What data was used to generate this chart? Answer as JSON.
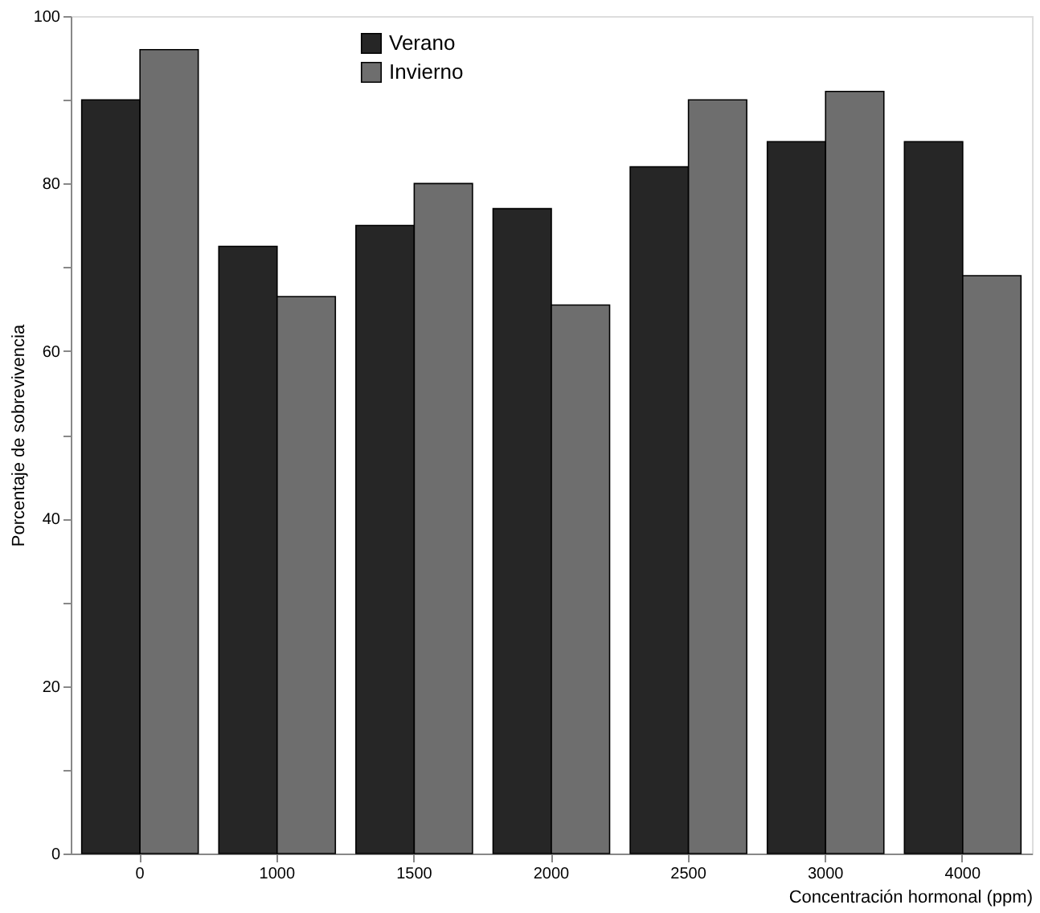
{
  "chart_data": {
    "type": "bar",
    "xlabel": "Concentración hormonal (ppm)",
    "ylabel": "Porcentaje de sobrevivencia",
    "categories": [
      "0",
      "1000",
      "1500",
      "2000",
      "2500",
      "3000",
      "4000"
    ],
    "series": [
      {
        "name": "Verano",
        "color": "#262626",
        "values": [
          90,
          72.5,
          75,
          77,
          82,
          85,
          85
        ]
      },
      {
        "name": "Invierno",
        "color": "#6e6e6e",
        "values": [
          96,
          66.5,
          80,
          65.5,
          90,
          91,
          69
        ]
      }
    ],
    "ylim": [
      0,
      100
    ],
    "yticks": [
      0,
      {
        "value": 10,
        "label": null
      },
      20,
      {
        "value": 30,
        "label": null
      },
      40,
      {
        "value": 50,
        "label": null
      },
      60,
      {
        "value": 70,
        "label": null
      },
      80,
      {
        "value": 90,
        "label": null
      },
      100
    ],
    "grid": false,
    "legend": "top left"
  }
}
